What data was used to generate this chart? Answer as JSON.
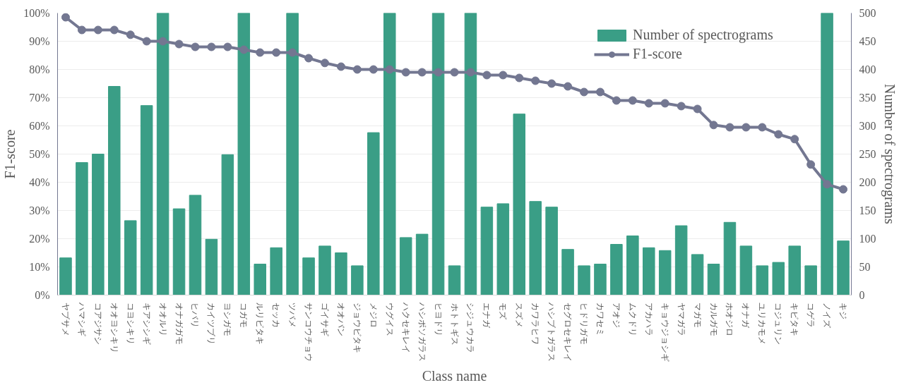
{
  "chart_data": {
    "type": "bar",
    "xlabel": "Class name",
    "ylabel": "F1-score",
    "y2label": "Number of spectrograms",
    "categories": [
      "ヤブサメ",
      "ハマシギ",
      "コアジサシ",
      "オオヨシキリ",
      "コヨシキリ",
      "キアシシギ",
      "オオルリ",
      "オナガガモ",
      "ヒバリ",
      "カイツブリ",
      "ヨシガモ",
      "コガモ",
      "ルリビタキ",
      "セッカ",
      "ツバメ",
      "サンコウチョウ",
      "ゴイサギ",
      "オオバン",
      "ジョウビタキ",
      "メジロ",
      "ウグイス",
      "ハクセキレイ",
      "ハシボソガラス",
      "ヒヨドリ",
      "ホトトギス",
      "シジュウカラ",
      "エナガ",
      "モズ",
      "スズメ",
      "カワラヒワ",
      "ハシブトガラス",
      "セグロセキレイ",
      "ヒドリガモ",
      "カワセミ",
      "アオジ",
      "ムクドリ",
      "アカハラ",
      "キョウジョシギ",
      "ヤマガラ",
      "マガモ",
      "カルガモ",
      "ホオジロ",
      "オナガ",
      "ユリカモメ",
      "コジュリン",
      "キビタキ",
      "コゲラ",
      "ノイズ",
      "キジ"
    ],
    "series": [
      {
        "name": "Number of spectrograms",
        "axis": "y2",
        "color": "#3a9e86",
        "values": [
          66,
          235,
          250,
          370,
          132,
          336,
          500,
          153,
          177,
          99,
          249,
          500,
          55,
          84,
          500,
          66,
          87,
          75,
          52,
          288,
          500,
          102,
          108,
          500,
          52,
          500,
          156,
          162,
          321,
          166,
          156,
          81,
          52,
          55,
          90,
          105,
          84,
          79,
          123,
          72,
          55,
          129,
          87,
          52,
          58,
          87,
          52,
          500,
          96
        ]
      },
      {
        "name": "F1-score",
        "type": "line",
        "marker": "circle",
        "line_style": "solid",
        "color": "#737791",
        "values": [
          98.5,
          94,
          94,
          94,
          92.3,
          90,
          90,
          89,
          88,
          88,
          88,
          87,
          86,
          86,
          86,
          84,
          82.3,
          81,
          80,
          80,
          80,
          79,
          79,
          79,
          79,
          79,
          78,
          78,
          77,
          76,
          75,
          74,
          72,
          72,
          69,
          69,
          68,
          68,
          67,
          66,
          60.3,
          59.5,
          59.5,
          59.5,
          57,
          55.3,
          46.3,
          39.3,
          37.5
        ]
      }
    ],
    "ylim": [
      0,
      100
    ],
    "yticks": [
      {
        "value": 0,
        "label": "0%"
      },
      {
        "value": 10,
        "label": "10%"
      },
      {
        "value": 20,
        "label": "20%"
      },
      {
        "value": 30,
        "label": "30%"
      },
      {
        "value": 40,
        "label": "40%"
      },
      {
        "value": 50,
        "label": "50%"
      },
      {
        "value": 60,
        "label": "60%"
      },
      {
        "value": 70,
        "label": "70%"
      },
      {
        "value": 80,
        "label": "80%"
      },
      {
        "value": 90,
        "label": "90%"
      },
      {
        "value": 100,
        "label": "100%"
      }
    ],
    "y2lim": [
      0,
      500
    ],
    "y2ticks": [
      0,
      50,
      100,
      150,
      200,
      250,
      300,
      350,
      400,
      450,
      500
    ],
    "grid": "y",
    "legend": "top right"
  }
}
